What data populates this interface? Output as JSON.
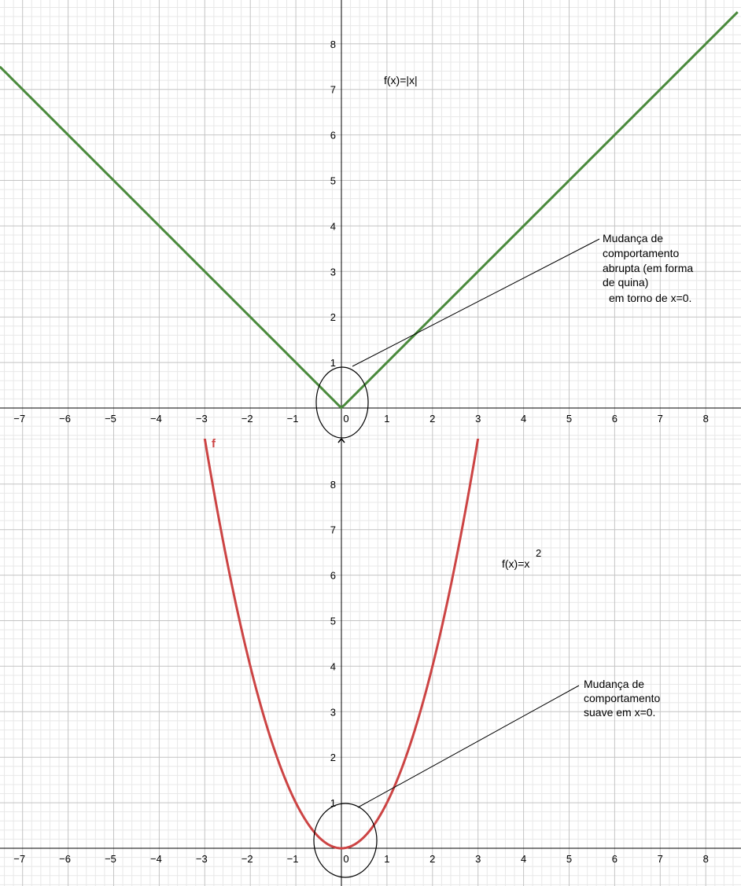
{
  "chart_data": [
    {
      "type": "line",
      "xlim": [
        -7.5,
        8.7
      ],
      "ylim": [
        -0.7,
        9.0
      ],
      "x_ticks": [
        -7,
        -6,
        -5,
        -4,
        -3,
        -2,
        -1,
        0,
        1,
        2,
        3,
        4,
        5,
        6,
        7,
        8
      ],
      "y_ticks": [
        1,
        2,
        3,
        4,
        5,
        6,
        7,
        8
      ],
      "grid": true,
      "series": [
        {
          "color": "#4a8a3c",
          "expression": "|x|",
          "x_range": [
            -7.5,
            8.7
          ]
        }
      ],
      "texts": {
        "formula": "f(x)=|x|",
        "annotation_lines": [
          "Mudança de",
          "comportamento",
          "abrupta (em forma",
          "de quina)",
          "em torno de x=0."
        ]
      }
    },
    {
      "type": "line",
      "xlim": [
        -7.5,
        8.7
      ],
      "ylim": [
        -0.8,
        9.0
      ],
      "x_ticks": [
        -7,
        -6,
        -5,
        -4,
        -3,
        -2,
        -1,
        0,
        1,
        2,
        3,
        4,
        5,
        6,
        7,
        8
      ],
      "y_ticks": [
        1,
        2,
        3,
        4,
        5,
        6,
        7,
        8
      ],
      "grid": true,
      "series": [
        {
          "name": "f",
          "color": "#cc4444",
          "expression": "x^2",
          "x_range": [
            -3,
            3
          ]
        }
      ],
      "texts": {
        "formula_base": "f(x)=x",
        "formula_exp": "2",
        "annotation_lines": [
          "Mudança de",
          "comportamento",
          "suave em x=0."
        ]
      }
    }
  ]
}
